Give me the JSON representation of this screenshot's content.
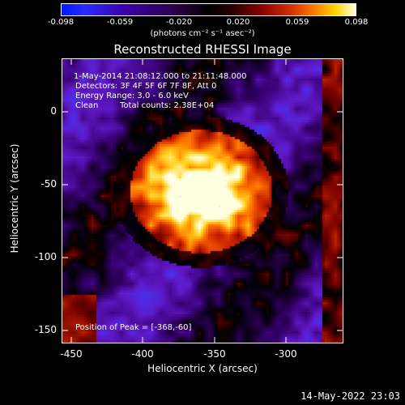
{
  "colorbar": {
    "ticks": [
      "-0.098",
      "-0.059",
      "-0.020",
      "0.020",
      "0.059",
      "0.098"
    ],
    "units": "(photons cm⁻² s⁻¹ asec⁻²)"
  },
  "title": "Reconstructed RHESSI Image",
  "annotations": {
    "time_range": "1-May-2014 21:08:12.000 to 21:11:48.000",
    "detectors": "Detectors: 3F 4F 5F 6F 7F 8F, Att 0",
    "energy": "Energy Range: 3.0 - 6.0 keV",
    "method": "Clean",
    "counts": "Total counts: 2.38E+04",
    "peak": "Position of Peak = [-368,-60]"
  },
  "axes": {
    "xlabel": "Heliocentric X (arcsec)",
    "ylabel": "Heliocentric Y (arcsec)",
    "xticks": [
      "-450",
      "-400",
      "-350",
      "-300"
    ],
    "yticks": [
      "0",
      "-50",
      "-100",
      "-150"
    ]
  },
  "timestamp": "14-May-2022 23:03",
  "peak_position": [
    -368,
    -60
  ]
}
